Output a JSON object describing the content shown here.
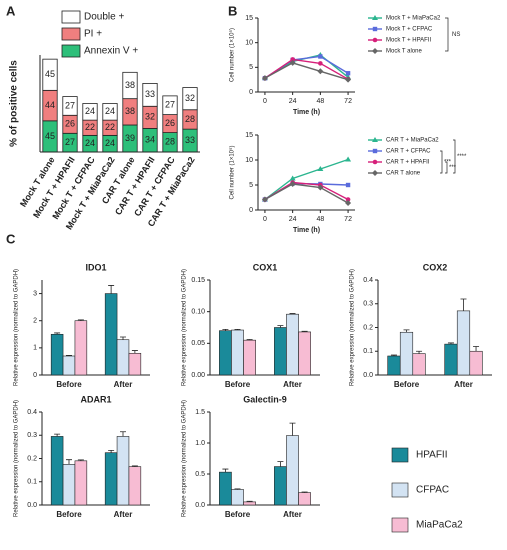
{
  "panel_labels": [
    "A",
    "B",
    "C"
  ],
  "chart_data": [
    {
      "type": "bar",
      "stacked": true,
      "ylabel": "% of positive cells",
      "categories": [
        "Mock T alone",
        "Mock T + HPAFII",
        "Mock T + CFPAC",
        "Mock T + MiaPaCa2",
        "CAR T alone",
        "CAR T + HPAFII",
        "CAR T + CFPAC",
        "CAR T + MiaPaCa2"
      ],
      "ylim": [
        0,
        140
      ],
      "series": [
        {
          "name": "Annexin V +",
          "color": "#2dbf7a",
          "values": [
            45,
            27,
            24,
            24,
            39,
            34,
            28,
            33
          ]
        },
        {
          "name": "PI +",
          "color": "#f07f7f",
          "values": [
            44,
            26,
            22,
            22,
            38,
            32,
            26,
            28
          ]
        },
        {
          "name": "Double +",
          "color": "#ffffff",
          "values": [
            45,
            27,
            24,
            24,
            38,
            33,
            27,
            32
          ]
        }
      ]
    },
    {
      "type": "line",
      "ylabel": "Cell number (1×10⁵)",
      "xlabel": "Time (h)",
      "x": [
        0,
        24,
        48,
        72
      ],
      "xlim": [
        -6,
        78
      ],
      "xticks": [
        0,
        24,
        48,
        72
      ],
      "ylim": [
        0,
        15
      ],
      "yticks": [
        0,
        5,
        10,
        15
      ],
      "annotations": [
        "NS"
      ],
      "series": [
        {
          "name": "Mock T + MiaPaCa2",
          "color": "#2bb58f",
          "marker": "triangle",
          "values": [
            2.8,
            6.2,
            7.5,
            3.0
          ]
        },
        {
          "name": "Mock T + CFPAC",
          "color": "#5a6bdc",
          "marker": "square",
          "values": [
            2.8,
            6.5,
            7.2,
            3.8
          ]
        },
        {
          "name": "Mock T + HPAFII",
          "color": "#d6207a",
          "marker": "circle",
          "values": [
            2.8,
            6.6,
            5.8,
            2.6
          ]
        },
        {
          "name": "Mock T alone",
          "color": "#666666",
          "marker": "diamond",
          "values": [
            2.8,
            5.9,
            4.2,
            2.5
          ]
        }
      ]
    },
    {
      "type": "line",
      "ylabel": "Cell number (1×10⁵)",
      "xlabel": "Time (h)",
      "x": [
        0,
        24,
        48,
        72
      ],
      "xlim": [
        -6,
        78
      ],
      "xticks": [
        0,
        24,
        48,
        72
      ],
      "ylim": [
        0,
        15
      ],
      "yticks": [
        0,
        5,
        10,
        15
      ],
      "annotations": [
        "***",
        "***",
        "****"
      ],
      "series": [
        {
          "name": "CAR T + MiaPaCa2",
          "color": "#2bb58f",
          "marker": "triangle",
          "values": [
            2.1,
            6.3,
            8.2,
            10.1
          ]
        },
        {
          "name": "CAR T + CFPAC",
          "color": "#5a6bdc",
          "marker": "square",
          "values": [
            2.1,
            5.3,
            5.2,
            5.0
          ]
        },
        {
          "name": "CAR T + HPAFII",
          "color": "#d6207a",
          "marker": "circle",
          "values": [
            2.1,
            5.5,
            5.0,
            2.1
          ]
        },
        {
          "name": "CAR T alone",
          "color": "#666666",
          "marker": "diamond",
          "values": [
            2.1,
            5.2,
            4.5,
            1.4
          ]
        }
      ]
    },
    {
      "type": "groupbar",
      "title": "IDO1",
      "ylabel": "Relative expression (normalized to GAPDH)",
      "categories": [
        "Before",
        "After"
      ],
      "ylim": [
        0,
        3.5
      ],
      "yticks": [
        0,
        1,
        2,
        3
      ],
      "series": [
        {
          "name": "HPAFII",
          "color": "#1a8a9a",
          "values": [
            1.5,
            3.0
          ],
          "errors": [
            0.05,
            0.3
          ]
        },
        {
          "name": "CFPAC",
          "color": "#d3e3f3",
          "values": [
            0.7,
            1.3
          ],
          "errors": [
            0.02,
            0.1
          ]
        },
        {
          "name": "MiaPaCa2",
          "color": "#f7bcd3",
          "values": [
            2.0,
            0.8
          ],
          "errors": [
            0.03,
            0.1
          ]
        }
      ]
    },
    {
      "type": "groupbar",
      "title": "COX1",
      "ylabel": "Relative expression (normalized to GAPDH)",
      "categories": [
        "Before",
        "After"
      ],
      "ylim": [
        0,
        0.15
      ],
      "yticks": [
        {
          "value": 0,
          "label": "0.00"
        },
        {
          "value": 0.05,
          "label": "0.05"
        },
        {
          "value": 0.1,
          "label": "0.10"
        },
        {
          "value": 0.15,
          "label": "0.15"
        }
      ],
      "series": [
        {
          "name": "HPAFII",
          "color": "#1a8a9a",
          "values": [
            0.07,
            0.075
          ],
          "errors": [
            0.002,
            0.003
          ]
        },
        {
          "name": "CFPAC",
          "color": "#d3e3f3",
          "values": [
            0.071,
            0.096
          ],
          "errors": [
            0.001,
            0.001
          ]
        },
        {
          "name": "MiaPaCa2",
          "color": "#f7bcd3",
          "values": [
            0.055,
            0.068
          ],
          "errors": [
            0.001,
            0.001
          ]
        }
      ]
    },
    {
      "type": "groupbar",
      "title": "COX2",
      "ylabel": "Relative expression (normalized to GAPDH)",
      "categories": [
        "Before",
        "After"
      ],
      "ylim": [
        0,
        0.4
      ],
      "yticks": [
        {
          "value": 0,
          "label": "0.0"
        },
        {
          "value": 0.1,
          "label": "0.1"
        },
        {
          "value": 0.2,
          "label": "0.2"
        },
        {
          "value": 0.3,
          "label": "0.3"
        },
        {
          "value": 0.4,
          "label": "0.4"
        }
      ],
      "series": [
        {
          "name": "HPAFII",
          "color": "#1a8a9a",
          "values": [
            0.08,
            0.13
          ],
          "errors": [
            0.004,
            0.005
          ]
        },
        {
          "name": "CFPAC",
          "color": "#d3e3f3",
          "values": [
            0.18,
            0.27
          ],
          "errors": [
            0.01,
            0.05
          ]
        },
        {
          "name": "MiaPaCa2",
          "color": "#f7bcd3",
          "values": [
            0.09,
            0.1
          ],
          "errors": [
            0.01,
            0.02
          ]
        }
      ]
    },
    {
      "type": "groupbar",
      "title": "ADAR1",
      "ylabel": "Relative expression (normalized to GAPDH)",
      "categories": [
        "Before",
        "After"
      ],
      "ylim": [
        0,
        0.4
      ],
      "yticks": [
        {
          "value": 0,
          "label": "0.0"
        },
        {
          "value": 0.1,
          "label": "0.1"
        },
        {
          "value": 0.2,
          "label": "0.2"
        },
        {
          "value": 0.3,
          "label": "0.3"
        },
        {
          "value": 0.4,
          "label": "0.4"
        }
      ],
      "series": [
        {
          "name": "HPAFII",
          "color": "#1a8a9a",
          "values": [
            0.295,
            0.225
          ],
          "errors": [
            0.01,
            0.01
          ]
        },
        {
          "name": "CFPAC",
          "color": "#d3e3f3",
          "values": [
            0.175,
            0.295
          ],
          "errors": [
            0.02,
            0.02
          ]
        },
        {
          "name": "MiaPaCa2",
          "color": "#f7bcd3",
          "values": [
            0.19,
            0.165
          ],
          "errors": [
            0.004,
            0.003
          ]
        }
      ]
    },
    {
      "type": "groupbar",
      "title": "Galectin-9",
      "ylabel": "Relative expression (normalized to GAPDH)",
      "legend": true,
      "categories": [
        "Before",
        "After"
      ],
      "ylim": [
        0,
        1.5
      ],
      "yticks": [
        {
          "value": 0,
          "label": "0.0"
        },
        {
          "value": 0.5,
          "label": "0.5"
        },
        {
          "value": 1,
          "label": "1.0"
        },
        {
          "value": 1.5,
          "label": "1.5"
        }
      ],
      "series": [
        {
          "name": "HPAFII",
          "color": "#1a8a9a",
          "values": [
            0.53,
            0.62
          ],
          "errors": [
            0.05,
            0.08
          ]
        },
        {
          "name": "CFPAC",
          "color": "#d3e3f3",
          "values": [
            0.25,
            1.12
          ],
          "errors": [
            0.01,
            0.2
          ]
        },
        {
          "name": "MiaPaCa2",
          "color": "#f7bcd3",
          "values": [
            0.05,
            0.2
          ],
          "errors": [
            0.01,
            0.01
          ]
        }
      ]
    }
  ]
}
